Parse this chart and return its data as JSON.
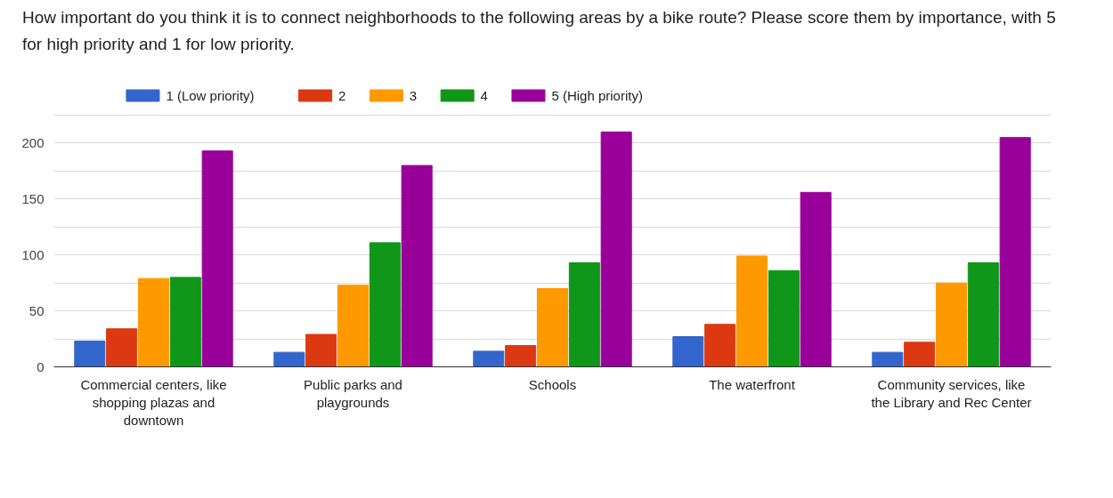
{
  "chart_data": {
    "type": "bar",
    "title": "How important do you think it is to connect neighborhoods to the following areas by a bike route? Please score them by importance, with 5 for high priority and 1 for low priority.",
    "categories": [
      "Commercial centers, like shopping plazas and downtown",
      "Public parks and playgrounds",
      "Schools",
      "The waterfront",
      "Community services, like the Library and Rec Center"
    ],
    "series": [
      {
        "name": "1 (Low priority)",
        "color": "#3366cc",
        "values": [
          23,
          13,
          14,
          27,
          13
        ]
      },
      {
        "name": "2",
        "color": "#dc3912",
        "values": [
          34,
          29,
          19,
          38,
          22
        ]
      },
      {
        "name": "3",
        "color": "#ff9900",
        "values": [
          79,
          73,
          70,
          99,
          75
        ]
      },
      {
        "name": "4",
        "color": "#109618",
        "values": [
          80,
          111,
          93,
          86,
          93
        ]
      },
      {
        "name": "5 (High priority)",
        "color": "#990099",
        "values": [
          193,
          180,
          210,
          156,
          205
        ]
      }
    ],
    "ylim": [
      0,
      225
    ],
    "yticks": [
      0,
      {
        "value": 25,
        "label": null
      },
      50,
      {
        "value": 75,
        "label": null
      },
      100,
      {
        "value": 125,
        "label": null
      },
      150,
      {
        "value": 175,
        "label": null
      },
      200,
      {
        "value": 225,
        "label": null
      }
    ],
    "grid": "y",
    "legend": "top left"
  }
}
